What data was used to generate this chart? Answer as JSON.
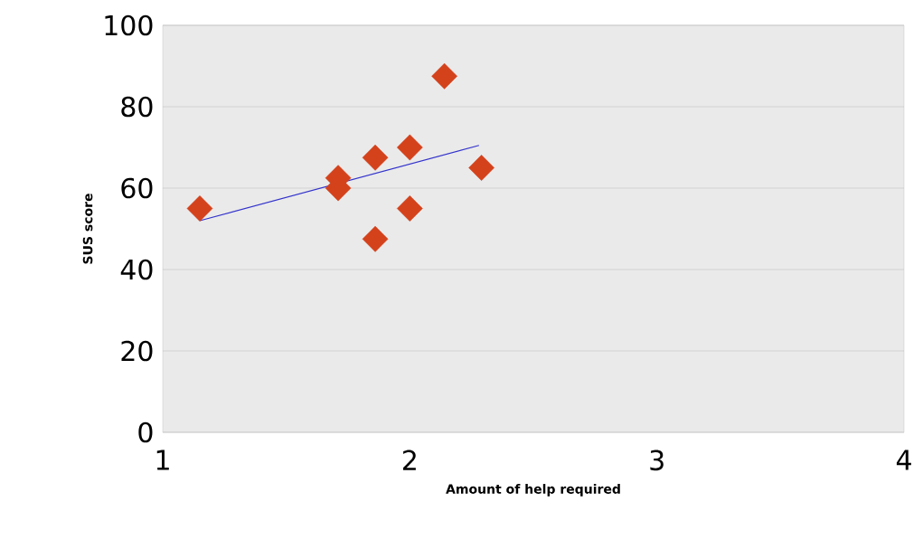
{
  "chart_data": {
    "type": "scatter",
    "xlabel": "Amount of help required",
    "ylabel": "SUS score",
    "xlim": [
      1,
      4
    ],
    "ylim": [
      0,
      100
    ],
    "xticks": [
      1,
      2,
      3,
      4
    ],
    "yticks": [
      0,
      20,
      40,
      60,
      80,
      100
    ],
    "grid": "y",
    "series": [
      {
        "marker": "diamond",
        "color": "#d4421c",
        "x": [
          1.15,
          1.71,
          1.71,
          1.86,
          1.86,
          2.0,
          2.0,
          2.14,
          2.29
        ],
        "values": [
          55,
          62.5,
          60,
          67.5,
          47.5,
          70,
          55,
          87.5,
          65
        ]
      },
      {
        "type": "line",
        "color": "#3333cc",
        "x": [
          1.15,
          2.28
        ],
        "values": [
          52,
          70.5
        ]
      }
    ]
  }
}
